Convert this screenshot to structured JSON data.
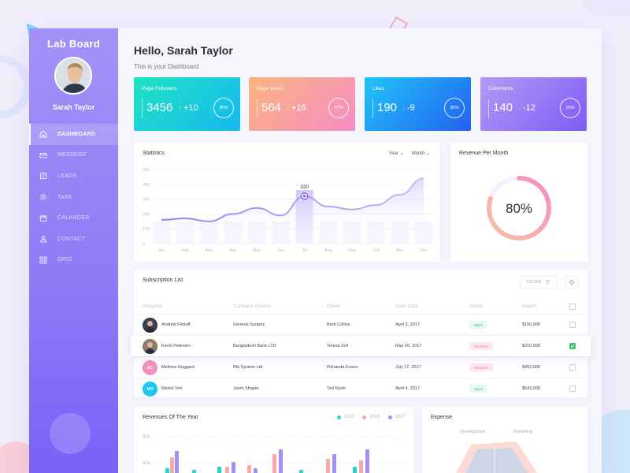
{
  "sidebar": {
    "brand": "Lab Board",
    "user_name": "Sarah Taylor",
    "items": [
      {
        "label": "DASHBOARD",
        "icon": "home-icon",
        "active": true
      },
      {
        "label": "MESSEGE",
        "icon": "mail-icon",
        "active": false
      },
      {
        "label": "LEADS",
        "icon": "leads-icon",
        "active": false
      },
      {
        "label": "TASK",
        "icon": "task-icon",
        "active": false
      },
      {
        "label": "CALANDER",
        "icon": "calendar-icon",
        "active": false
      },
      {
        "label": "CONTACT",
        "icon": "contact-icon",
        "active": false
      },
      {
        "label": "GRID",
        "icon": "grid-icon",
        "active": false
      }
    ]
  },
  "header": {
    "greeting": "Hello, Sarah Taylor",
    "subtitle": "This is your Dashboard"
  },
  "stats": [
    {
      "title": "Page Followers",
      "value": "3456",
      "delta": "+10",
      "direction": "up",
      "percent": "85%",
      "gradient": [
        "#20e3c2",
        "#17b8f0"
      ]
    },
    {
      "title": "Page Views",
      "value": "564",
      "delta": "+16",
      "direction": "up",
      "percent": "47%",
      "gradient": [
        "#fbb57e",
        "#f68cc6"
      ]
    },
    {
      "title": "Likes",
      "value": "190",
      "delta": "-9",
      "direction": "down",
      "percent": "30%",
      "gradient": [
        "#1fc6f8",
        "#2460f2"
      ]
    },
    {
      "title": "Comments",
      "value": "140",
      "delta": "-12",
      "direction": "down",
      "percent": "25%",
      "gradient": [
        "#b59af5",
        "#7d5cf6"
      ]
    }
  ],
  "statistics": {
    "title": "Statistics",
    "controls": [
      "Year",
      "Month"
    ]
  },
  "revenue_per_month": {
    "title": "Revenue Per Month",
    "value": "80%",
    "fraction": 0.8
  },
  "subscription": {
    "title": "Subscription List",
    "filter_label": "FILTER",
    "columns": [
      "Assigned",
      "Company b Name",
      "Owner",
      "Open Date",
      "Status",
      "Impact"
    ],
    "rows": [
      {
        "initials": "",
        "avatar_color": "#39404f",
        "name": "Andrew Flintoff",
        "company": "General Surgery",
        "owner": "Brett Collins",
        "date": "April 3, 2017",
        "status": "Open",
        "impact": "$150,000",
        "checked": false
      },
      {
        "initials": "",
        "avatar_color": "#8b7d6b",
        "name": "Kevin Petersen",
        "company": "Bangladesh Bank LTD",
        "owner": "Teresa Zoll",
        "date": "May 20, 2017",
        "status": "Declined",
        "impact": "$210,000",
        "checked": true
      },
      {
        "initials": "SC",
        "avatar_color": "#f38fbf",
        "name": "Methew Hoggard",
        "company": "Rib System Ltd",
        "owner": "Rohanda Evans",
        "date": "July 17, 2017",
        "status": "Declined",
        "impact": "$452,000",
        "checked": false
      },
      {
        "initials": "MV",
        "avatar_color": "#1ec7f0",
        "name": "Mickel Von",
        "company": "Joom Shaper",
        "owner": "Ted Kivok",
        "date": "April 4, 2017",
        "status": "Open",
        "impact": "$543,000",
        "checked": false
      }
    ]
  },
  "revenues_of_year": {
    "title": "Revenues Of The Year",
    "legend": [
      {
        "label": "2015",
        "color": "#21d6c6"
      },
      {
        "label": "2016",
        "color": "#f7a8a8"
      },
      {
        "label": "2017",
        "color": "#a58ef0"
      }
    ],
    "y_ticks": [
      "80k",
      "60k"
    ]
  },
  "expense": {
    "title": "Expense",
    "labels": [
      "Development",
      "Marketing"
    ]
  },
  "chart_data": [
    {
      "type": "area",
      "title": "Statistics",
      "categories": [
        "Jan",
        "Feb",
        "Mar",
        "Apr",
        "May",
        "Jun",
        "Jul",
        "Aug",
        "Sep",
        "Oct",
        "Nov",
        "Dec"
      ],
      "values": [
        160,
        170,
        150,
        200,
        240,
        190,
        320,
        250,
        230,
        260,
        330,
        440
      ],
      "highlight": {
        "category": "Jul",
        "label": "320"
      },
      "y_ticks": [
        0,
        100,
        200,
        300,
        400,
        500
      ],
      "ylim": [
        0,
        500
      ]
    }
  ]
}
